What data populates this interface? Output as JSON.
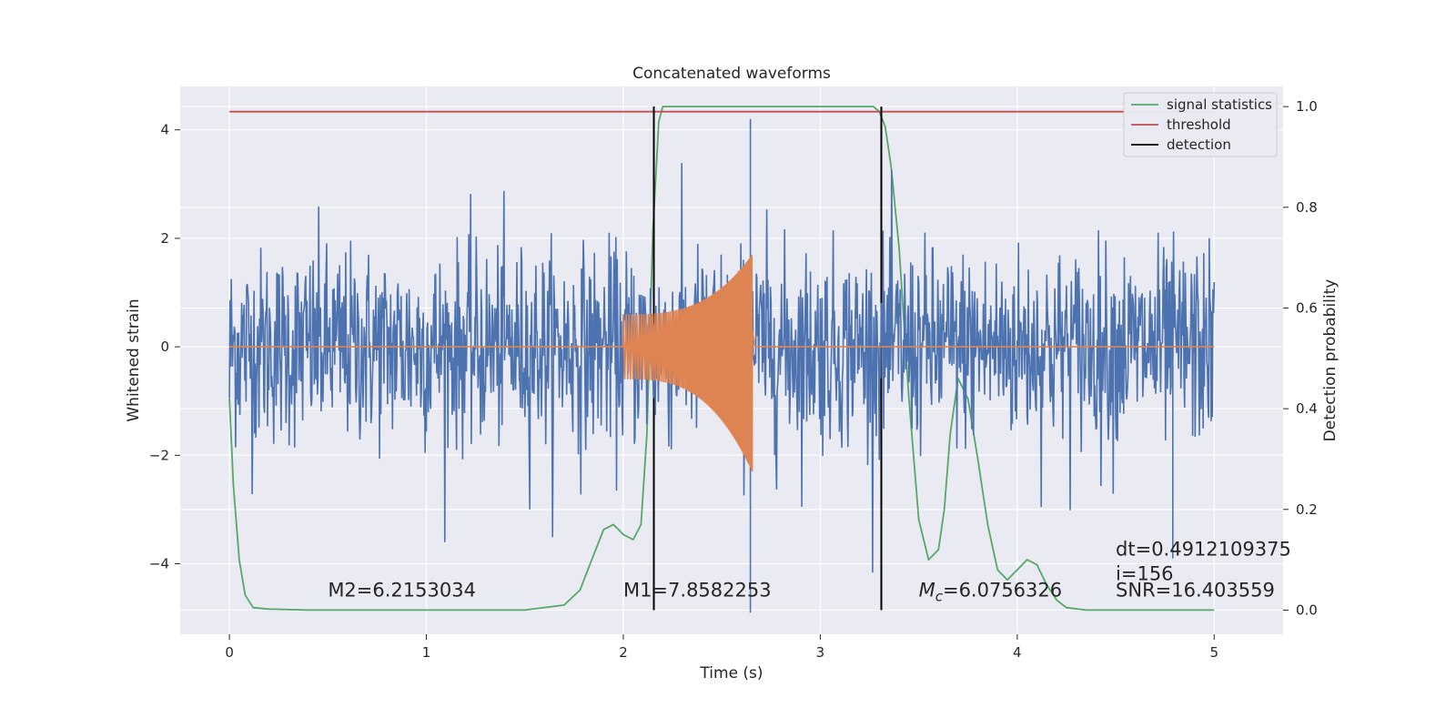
{
  "chart_data": {
    "type": "line",
    "title": "Concatenated waveforms",
    "xlabel": "Time (s)",
    "ylabel": "Whitened strain",
    "y2label": "Detection probability",
    "xlim": [
      -0.25,
      5.35
    ],
    "ylim": [
      -5.3,
      4.8
    ],
    "y2lim": [
      -0.048,
      1.04
    ],
    "xticks": [
      0,
      1,
      2,
      3,
      4,
      5
    ],
    "yticks": [
      -4,
      -2,
      0,
      2,
      4
    ],
    "y2ticks": [
      0.0,
      0.2,
      0.4,
      0.6,
      0.8,
      1.0
    ],
    "xtick_labels": [
      "0",
      "1",
      "2",
      "3",
      "4",
      "5"
    ],
    "ytick_labels": [
      "−4",
      "−2",
      "0",
      "2",
      "4"
    ],
    "y2tick_labels": [
      "0.0",
      "0.2",
      "0.4",
      "0.6",
      "0.8",
      "1.0"
    ],
    "grid": true,
    "legend_position": "top-right",
    "colors": {
      "strain": "#4c72b0",
      "template": "#dd8452",
      "signal_statistics": "#55a868",
      "threshold": "#c44e52",
      "detection": "#000000",
      "background": "#eaeaf2",
      "grid": "#ffffff"
    },
    "series": [
      {
        "name": "signal statistics",
        "axis": "right",
        "color": "#55a868",
        "x": [
          0,
          0.02,
          0.05,
          0.08,
          0.12,
          0.2,
          0.4,
          0.8,
          1.2,
          1.5,
          1.7,
          1.78,
          1.84,
          1.9,
          1.95,
          2.0,
          2.05,
          2.09,
          2.12,
          2.15,
          2.18,
          2.2,
          2.25,
          2.5,
          3.0,
          3.2,
          3.27,
          3.3,
          3.33,
          3.36,
          3.4,
          3.45,
          3.5,
          3.55,
          3.6,
          3.63,
          3.66,
          3.7,
          3.75,
          3.8,
          3.85,
          3.9,
          3.95,
          4.0,
          4.05,
          4.1,
          4.15,
          4.2,
          4.25,
          4.35,
          4.6,
          4.8,
          5.0
        ],
        "y": [
          0.42,
          0.25,
          0.1,
          0.03,
          0.005,
          0.002,
          0.0,
          0.0,
          0.0,
          0.0,
          0.01,
          0.04,
          0.1,
          0.16,
          0.17,
          0.15,
          0.14,
          0.17,
          0.35,
          0.75,
          0.97,
          1.0,
          1.0,
          1.0,
          1.0,
          1.0,
          1.0,
          0.99,
          0.96,
          0.88,
          0.72,
          0.42,
          0.18,
          0.1,
          0.12,
          0.2,
          0.35,
          0.46,
          0.42,
          0.3,
          0.17,
          0.08,
          0.06,
          0.08,
          0.1,
          0.09,
          0.05,
          0.02,
          0.005,
          0.0,
          0.0,
          0.0,
          0.0
        ]
      },
      {
        "name": "threshold",
        "axis": "right",
        "color": "#c44e52",
        "x": [
          0,
          5
        ],
        "y": [
          0.99,
          0.99
        ]
      },
      {
        "name": "detection",
        "axis": "right",
        "color": "#000000",
        "type": "vlines",
        "x": [
          2.155,
          3.31
        ],
        "y": [
          0.0,
          1.0
        ]
      },
      {
        "axis": "left",
        "color": "#4c72b0",
        "type": "noise",
        "x": [
          0,
          5
        ],
        "std": 0.9,
        "min": -4.9,
        "max": 4.2,
        "outliers": [
          [
            2.645,
            -4.9
          ],
          [
            2.645,
            4.2
          ],
          [
            4.79,
            -3.9
          ]
        ]
      },
      {
        "axis": "left",
        "color": "#dd8452",
        "type": "chirp",
        "x": [
          2.0,
          2.655
        ],
        "envelope_upper": [
          0.6,
          1.7
        ],
        "envelope_lower": [
          -0.6,
          -2.3
        ],
        "tail": [
          2.655,
          2.67
        ]
      }
    ],
    "legend": [
      "signal statistics",
      "threshold",
      "detection"
    ],
    "annotations": [
      {
        "text": "M2=6.2153034",
        "x": 0.5,
        "y": -4.6
      },
      {
        "text": "M1=7.8582253",
        "x": 2.0,
        "y": -4.6
      },
      {
        "text": "M",
        "sub": "c",
        "text_after": "=6.0756326",
        "x": 3.5,
        "y": -4.6
      },
      {
        "text": "dt=0.4912109375",
        "x": 4.5,
        "y": -3.85
      },
      {
        "text": " i=156",
        "x": 4.5,
        "y": -4.3
      },
      {
        "text": "SNR=16.403559",
        "x": 4.5,
        "y": -4.6
      }
    ]
  }
}
